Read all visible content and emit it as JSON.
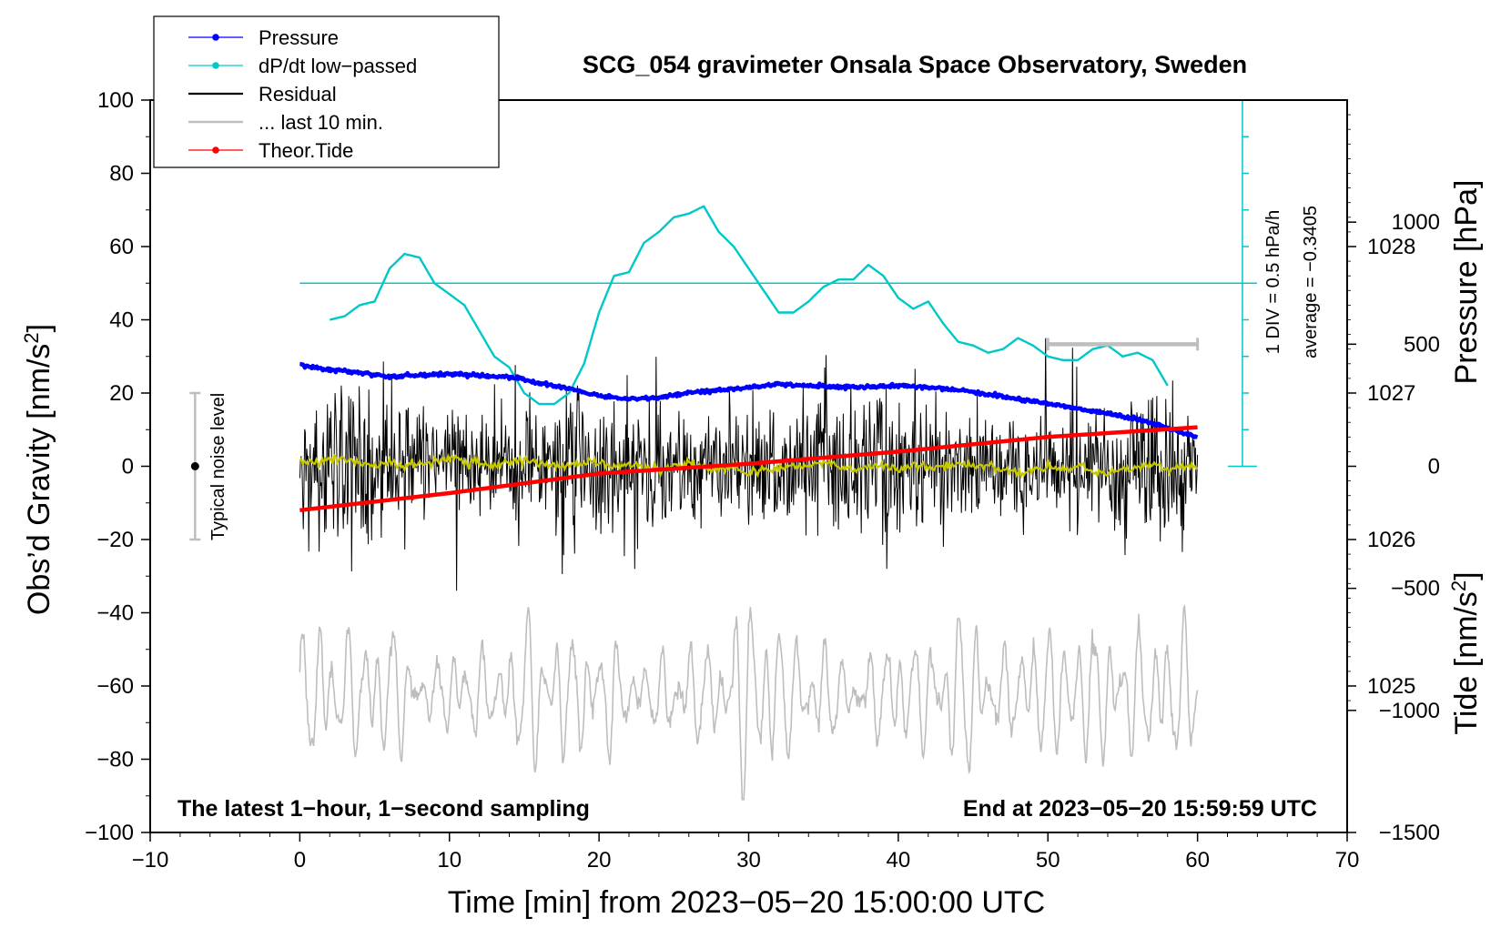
{
  "chart_data": {
    "type": "line",
    "title": "SCG_054 gravimeter Onsala Space Observatory, Sweden",
    "xlabel": "Time [min] from 2023−05−20 15:00:00 UTC",
    "ylabel_left": "Obs’d Gravity [nm/s",
    "ylabel_left_sup": "2",
    "ylabel_left_end": "]",
    "ylabel_right_pressure": "Pressure [hPa]",
    "ylabel_right_tide": "Tide [nm/s",
    "ylabel_right_tide_sup": "2",
    "ylabel_right_tide_end": "]",
    "xlim": [
      -10,
      70
    ],
    "ylim": [
      -100,
      100
    ],
    "pressure_axis_range": [
      1024.0,
      1029.0
    ],
    "tide_axis_range": [
      -1500,
      1500
    ],
    "x_ticks": [
      -10,
      0,
      10,
      20,
      30,
      40,
      50,
      60,
      70
    ],
    "x_tick_labels": [
      "−10",
      "0",
      "10",
      "20",
      "30",
      "40",
      "50",
      "60",
      "70"
    ],
    "y_ticks": [
      -100,
      -80,
      -60,
      -40,
      -20,
      0,
      20,
      40,
      60,
      80,
      100
    ],
    "y_tick_labels": [
      "−100",
      "−80",
      "−60",
      "−40",
      "−20",
      "0",
      "20",
      "40",
      "60",
      "80",
      "100"
    ],
    "pressure_ticks": [
      1025,
      1026,
      1027,
      1028
    ],
    "pressure_tick_labels": [
      "1025",
      "1026",
      "1027",
      "1028"
    ],
    "tide_ticks": [
      -1500,
      -1000,
      -500,
      0,
      500,
      1000
    ],
    "tide_tick_labels": [
      "−1500",
      "−1000",
      "−500",
      "0",
      "500",
      "1000"
    ],
    "legend": [
      {
        "label": "Pressure",
        "color": "#0000ff",
        "marker": true
      },
      {
        "label": "dP/dt low−passed",
        "color": "#00c8c8",
        "marker": true
      },
      {
        "label": "Residual",
        "color": "#000000",
        "marker": false
      },
      {
        "label": "... last 10 min.",
        "color": "#bebebe",
        "marker": false
      },
      {
        "label": "Theor.Tide",
        "color": "#ff0000",
        "marker": true
      }
    ],
    "annotations": {
      "left_note": "The latest 1−hour, 1−second sampling",
      "right_note": "End at 2023−05−20 15:59:59 UTC",
      "noise_label": "Typical noise level",
      "dpdt_scale": "1 DIV = 0.5 hPa/h",
      "dpdt_average": "average = −0.3405"
    },
    "noise_bar": {
      "x": -7,
      "low": -20,
      "high": 20,
      "center": 0
    },
    "dpdt_scale_bar": {
      "x": 63,
      "gravity_low": 0,
      "gravity_high": 100,
      "baseline": 50,
      "divisions": 10
    },
    "last10_bar": {
      "x_start": 50,
      "x_end": 60,
      "tide_value": 500
    },
    "series": [
      {
        "name": "Pressure",
        "axis": "pressure_hPa",
        "color": "#0000ff",
        "x": [
          0,
          2,
          4,
          6,
          8,
          10,
          12,
          14,
          16,
          18,
          20,
          22,
          24,
          26,
          28,
          30,
          32,
          34,
          36,
          38,
          40,
          42,
          44,
          46,
          48,
          50,
          52,
          54,
          56,
          58,
          60
        ],
        "values": [
          1027.19,
          1027.16,
          1027.14,
          1027.11,
          1027.12,
          1027.13,
          1027.12,
          1027.11,
          1027.07,
          1027.03,
          1026.98,
          1026.96,
          1026.97,
          1027.0,
          1027.02,
          1027.04,
          1027.06,
          1027.05,
          1027.04,
          1027.04,
          1027.05,
          1027.04,
          1027.02,
          1026.99,
          1026.96,
          1026.93,
          1026.89,
          1026.86,
          1026.82,
          1026.76,
          1026.7
        ]
      },
      {
        "name": "dP/dt low−passed",
        "axis": "dpdt_gravity_units",
        "color": "#00c8c8",
        "x": [
          2,
          3,
          4,
          5,
          6,
          7,
          8,
          9,
          10,
          11,
          12,
          13,
          14,
          15,
          16,
          17,
          18,
          19,
          20,
          21,
          22,
          23,
          24,
          25,
          26,
          27,
          28,
          29,
          30,
          31,
          32,
          33,
          34,
          35,
          36,
          37,
          38,
          39,
          40,
          41,
          42,
          43,
          44,
          45,
          46,
          47,
          48,
          49,
          50,
          51,
          52,
          53,
          54,
          55,
          56,
          57,
          58
        ],
        "values": [
          40,
          41,
          44,
          45,
          54,
          58,
          57,
          50,
          47,
          44,
          37,
          30,
          27,
          20,
          17,
          17,
          20,
          28,
          42,
          52,
          53,
          61,
          64,
          68,
          69,
          71,
          64,
          60,
          54,
          48,
          42,
          42,
          45,
          49,
          51,
          51,
          55,
          52,
          46,
          43,
          45,
          39,
          34,
          33,
          31,
          32,
          35,
          33,
          30,
          29,
          29,
          32,
          33,
          30,
          31,
          29,
          22
        ]
      },
      {
        "name": "Residual",
        "axis": "gravity",
        "color": "#000000",
        "x_range": [
          0,
          60
        ],
        "envelope": {
          "typical_amplitude": 12,
          "min": -34,
          "max": 35
        },
        "smoothed_mean_color": "#c8c800",
        "smoothed_mean": [
          2,
          1,
          2,
          2,
          1,
          0,
          1,
          0,
          1,
          1,
          2,
          1,
          1,
          0,
          1,
          2,
          1,
          0,
          0,
          1,
          1,
          0,
          1,
          0,
          -1,
          0,
          1,
          0,
          -1,
          0,
          -2,
          -1,
          -1,
          0,
          0,
          1,
          0,
          -1,
          0,
          0,
          -1,
          0,
          0,
          0,
          1,
          0,
          0,
          -1,
          -2,
          -1,
          0,
          -1,
          0,
          -1,
          -2,
          -1,
          0,
          1,
          -1,
          0,
          0
        ]
      },
      {
        "name": "... last 10 min.",
        "axis": "gravity",
        "color": "#bebebe",
        "x_range": [
          0,
          60
        ],
        "approximate_center": -62,
        "approximate_min": -91,
        "approximate_max": -35
      },
      {
        "name": "Theor.Tide",
        "axis": "tide",
        "color": "#ff0000",
        "x": [
          0,
          10,
          20,
          30,
          40,
          50,
          60
        ],
        "values": [
          -180,
          -110,
          -30,
          10,
          60,
          120,
          160
        ]
      }
    ]
  }
}
